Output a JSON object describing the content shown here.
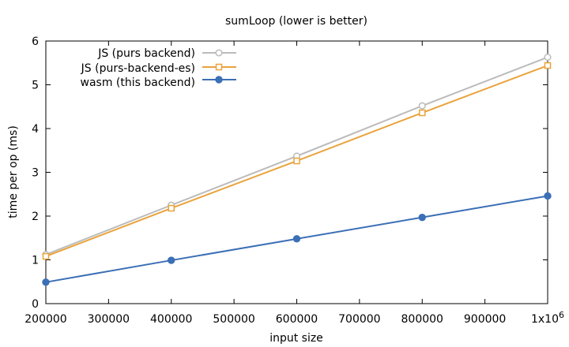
{
  "chart_data": {
    "type": "line",
    "title": "sumLoop   (lower is better)",
    "xlabel": "input size",
    "ylabel": "time per op (ms)",
    "xlim": [
      200000,
      1000000
    ],
    "ylim": [
      0,
      6
    ],
    "x_ticks": [
      200000,
      300000,
      400000,
      500000,
      600000,
      700000,
      800000,
      900000,
      1000000
    ],
    "x_tick_labels": [
      "200000",
      "300000",
      "400000",
      "500000",
      "600000",
      "700000",
      "800000",
      "900000",
      "1x10"
    ],
    "x_tick_last_exponent": "6",
    "y_ticks": [
      0,
      1,
      2,
      3,
      4,
      5,
      6
    ],
    "y_tick_labels": [
      "0",
      "1",
      "2",
      "3",
      "4",
      "5",
      "6"
    ],
    "grid": false,
    "legend_position": "top-left",
    "x": [
      200000,
      400000,
      600000,
      800000,
      1000000
    ],
    "series": [
      {
        "name": "JS (purs backend)",
        "color": "#bbbbbb",
        "marker": "open-circle",
        "values": [
          1.12,
          2.25,
          3.37,
          4.52,
          5.63
        ]
      },
      {
        "name": "JS (purs-backend-es)",
        "color": "#e9a33c",
        "marker": "open-square",
        "values": [
          1.08,
          2.18,
          3.26,
          4.36,
          5.44
        ]
      },
      {
        "name": "wasm (this backend)",
        "color": "#3b6fb6",
        "marker": "filled-circle",
        "values": [
          0.49,
          0.99,
          1.48,
          1.97,
          2.46
        ]
      }
    ]
  }
}
